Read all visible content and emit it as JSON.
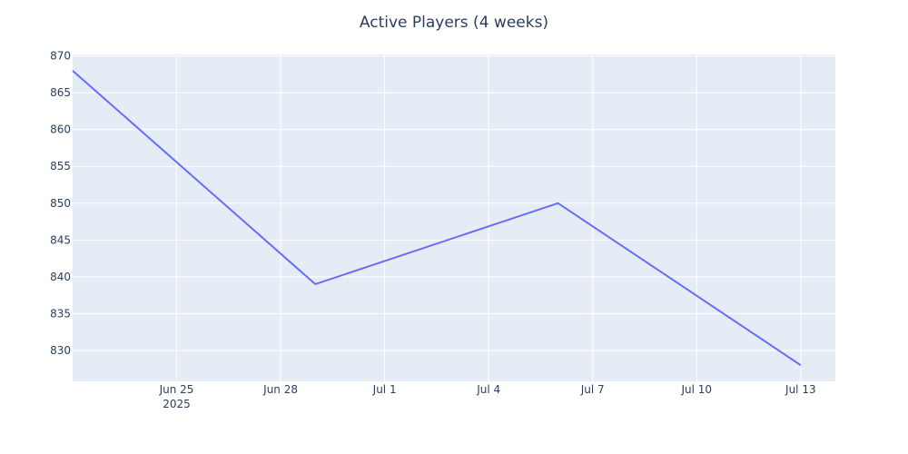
{
  "chart_data": {
    "type": "line",
    "title": "Active Players (4 weeks)",
    "xlabel": "",
    "ylabel": "",
    "x_start": "2025-06-22",
    "x_end": "2025-07-14",
    "x": [
      "2025-06-22",
      "2025-06-29",
      "2025-07-06",
      "2025-07-13"
    ],
    "series": [
      {
        "values": [
          868,
          839,
          850,
          828
        ]
      }
    ],
    "xlim": [
      "2025-06-22",
      "2025-07-14"
    ],
    "ylim": [
      825.8,
      870.2
    ],
    "yticks": [
      830,
      835,
      840,
      845,
      850,
      855,
      860,
      865,
      870
    ],
    "xticks": [
      {
        "date": "2025-06-25",
        "label": "Jun 25",
        "sublabel": "2025"
      },
      {
        "date": "2025-06-28",
        "label": "Jun 28"
      },
      {
        "date": "2025-07-01",
        "label": "Jul 1"
      },
      {
        "date": "2025-07-04",
        "label": "Jul 4"
      },
      {
        "date": "2025-07-07",
        "label": "Jul 7"
      },
      {
        "date": "2025-07-10",
        "label": "Jul 10"
      },
      {
        "date": "2025-07-13",
        "label": "Jul 13"
      }
    ],
    "grid": true,
    "colors": {
      "line": "#636efa",
      "plot_bg": "#e5ecf6",
      "grid": "#ffffff",
      "text": "#2a3f5f"
    }
  }
}
